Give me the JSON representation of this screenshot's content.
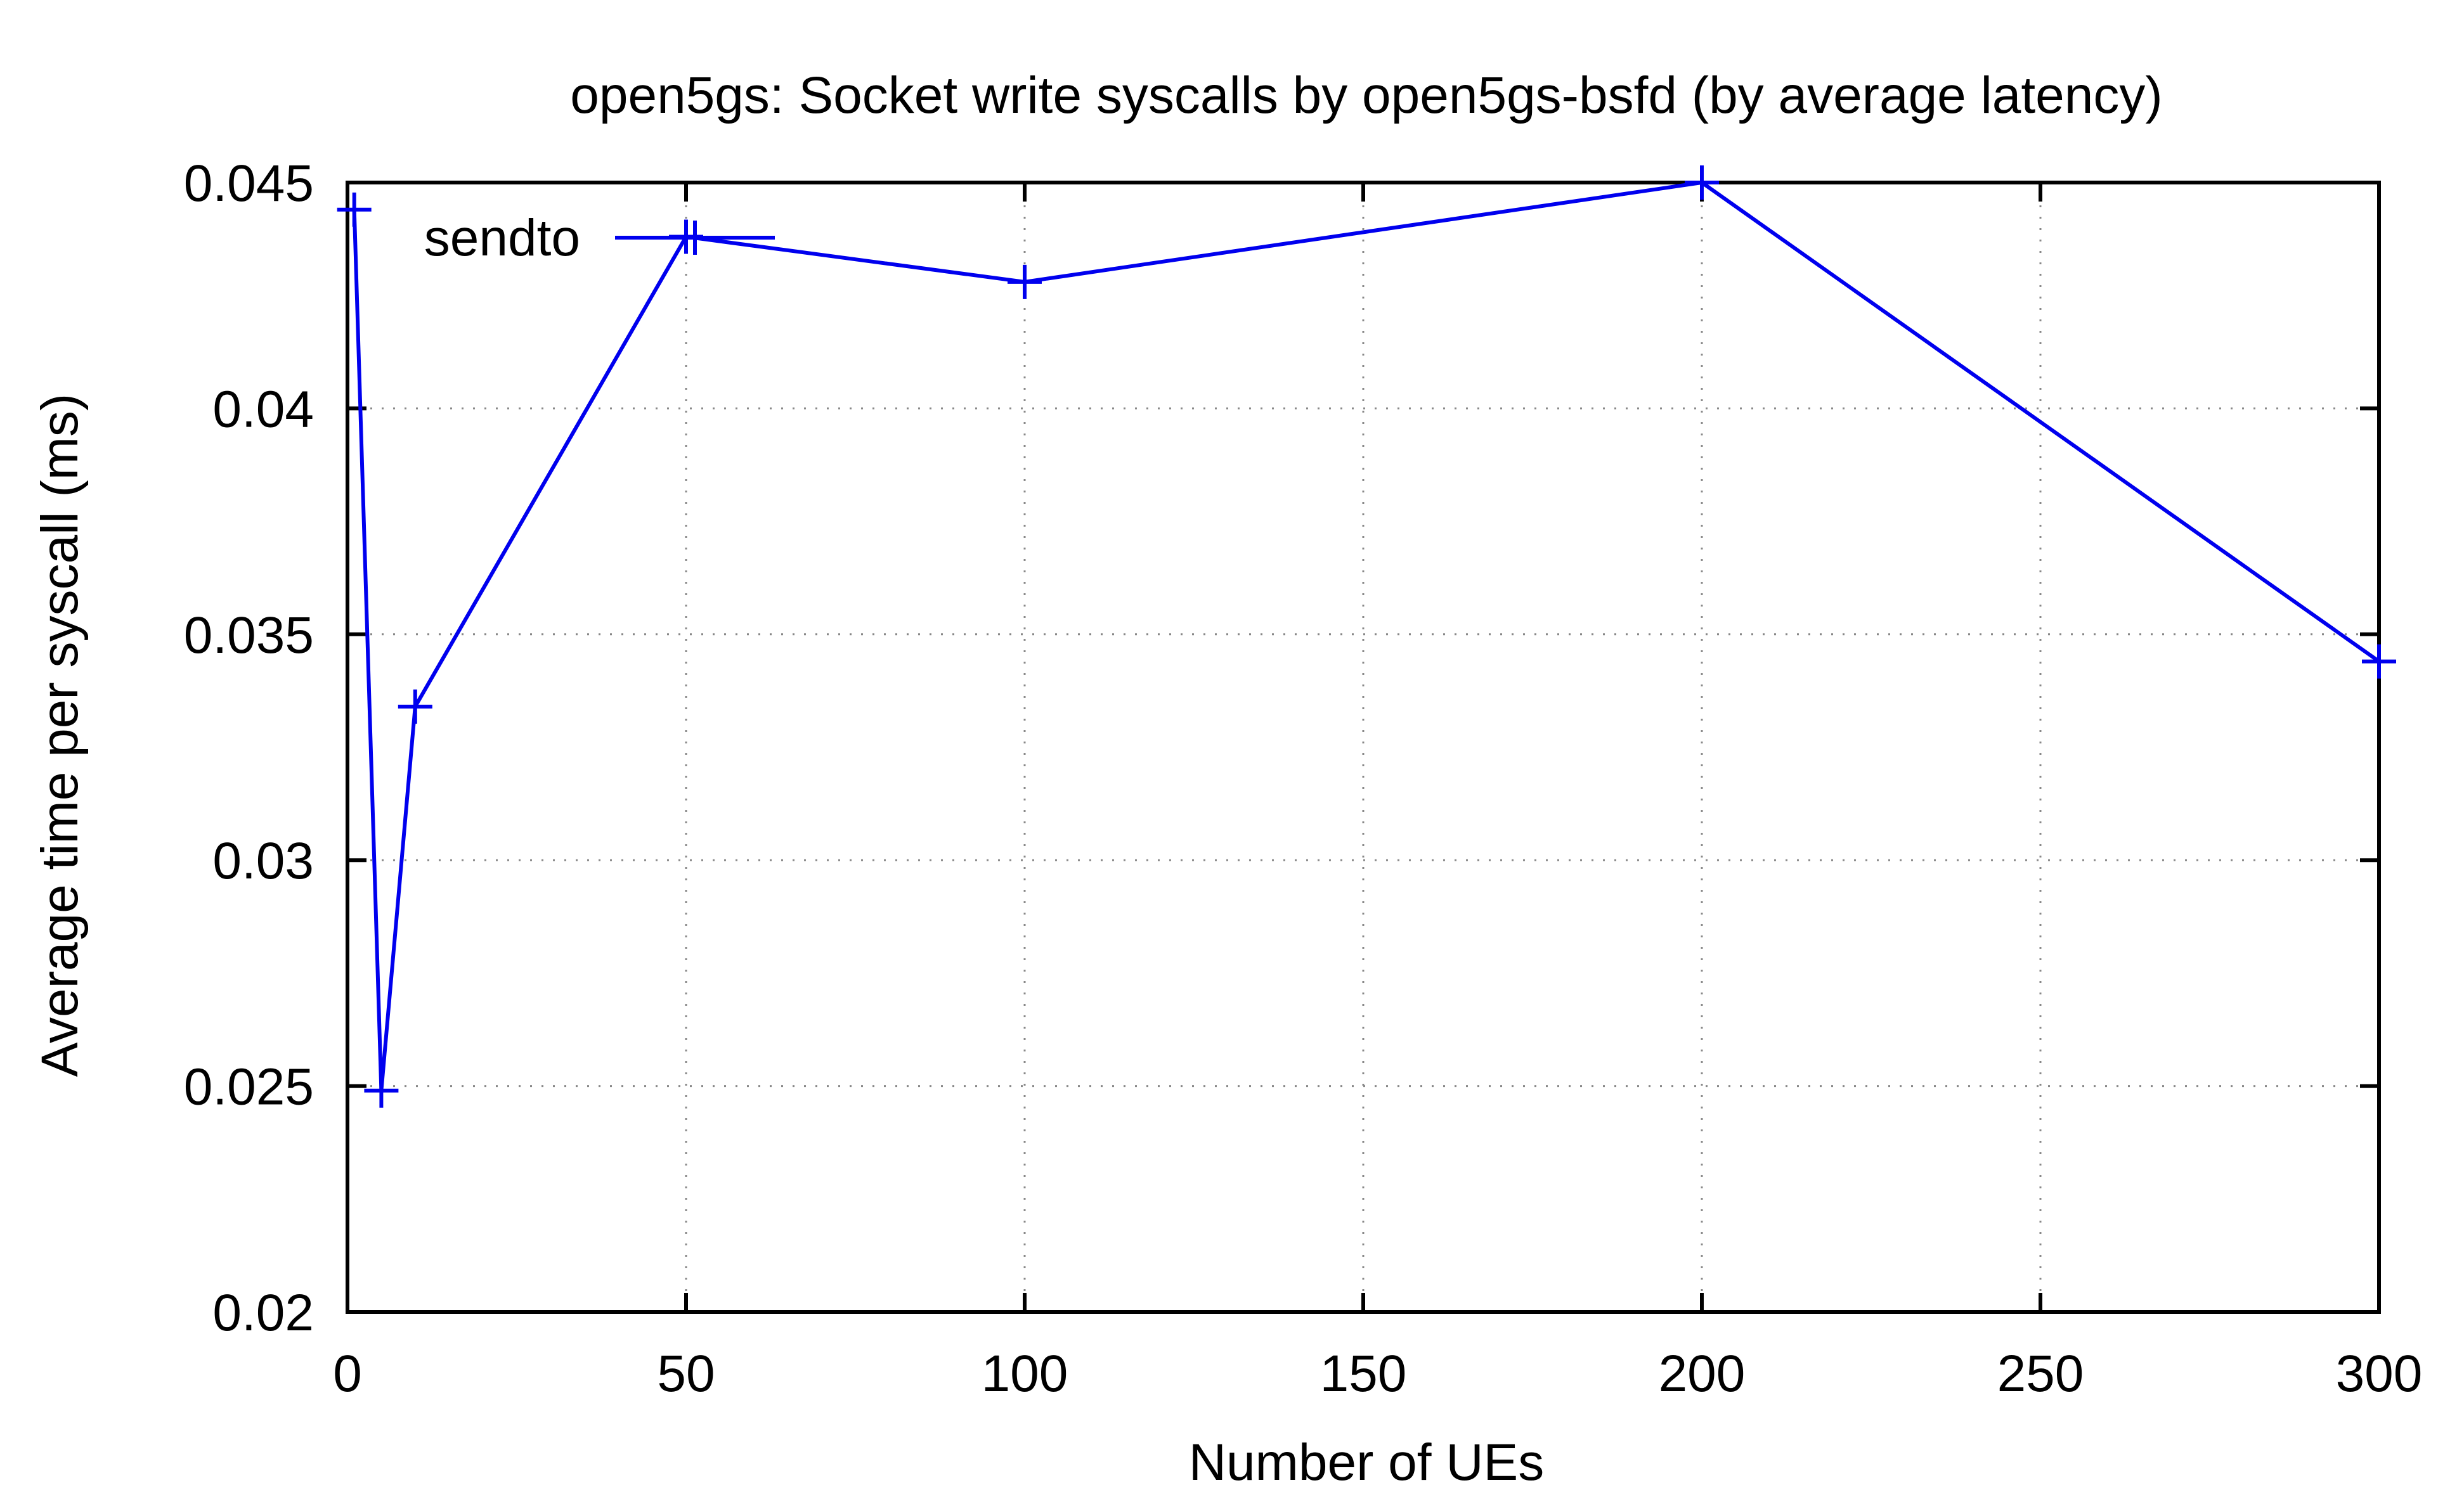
{
  "chart_data": {
    "type": "line",
    "title": "open5gs: Socket write syscalls by open5gs-bsfd (by average latency)",
    "xlabel": "Number of UEs",
    "ylabel": "Average time per syscall (ms)",
    "xlim": [
      0,
      300
    ],
    "ylim": [
      0.02,
      0.045
    ],
    "xticks": [
      "0",
      "50",
      "100",
      "150",
      "200",
      "250",
      "300"
    ],
    "xtick_values": [
      0,
      50,
      100,
      150,
      200,
      250,
      300
    ],
    "yticks": [
      "0.02",
      "0.025",
      "0.03",
      "0.035",
      "0.04",
      "0.045"
    ],
    "ytick_values": [
      0.02,
      0.025,
      0.03,
      0.035,
      0.04,
      0.045
    ],
    "grid": true,
    "legend_position": "top-left",
    "series": [
      {
        "name": "sendto",
        "color": "#0000ee",
        "marker": "plus",
        "x": [
          1,
          5,
          10,
          50,
          100,
          200,
          300
        ],
        "y": [
          0.0444,
          0.0249,
          0.0334,
          0.0438,
          0.0428,
          0.045,
          0.0344
        ]
      }
    ]
  }
}
